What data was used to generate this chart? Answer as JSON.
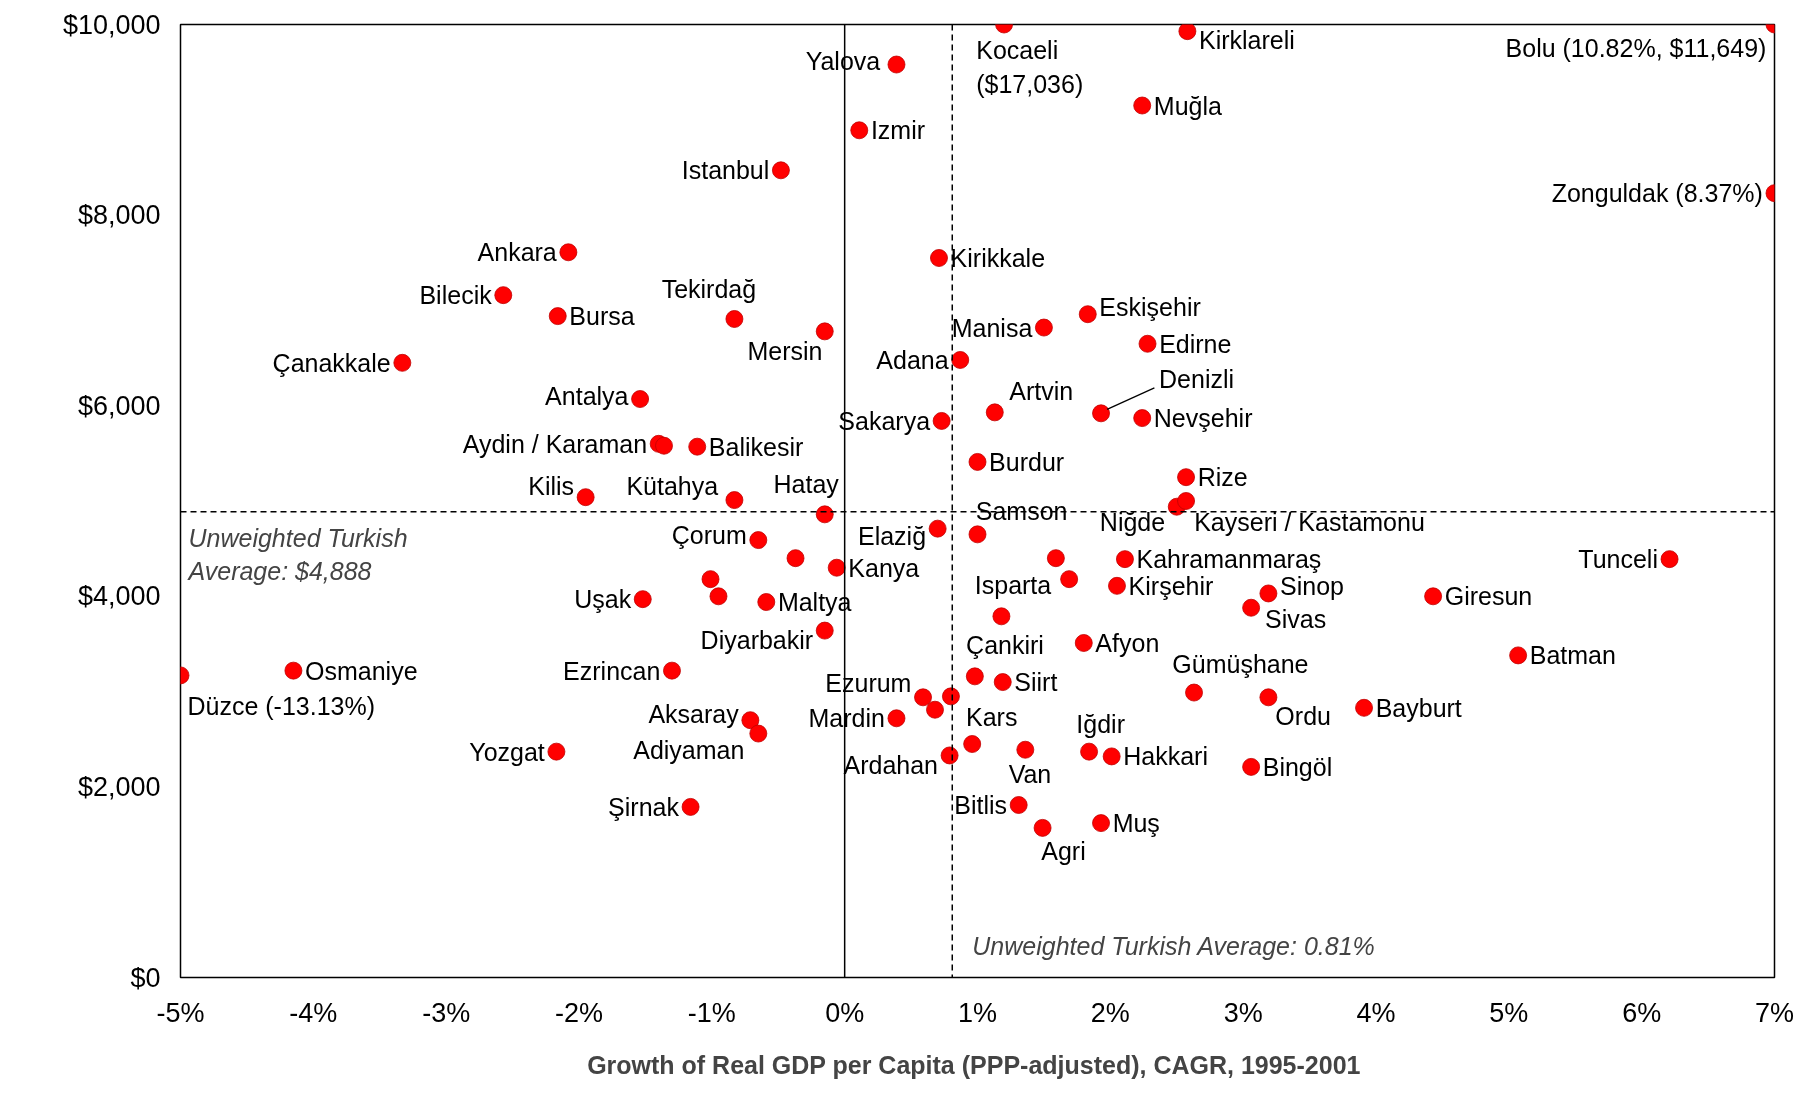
{
  "chart_data": {
    "type": "scatter",
    "xlabel": "Growth of Real GDP per Capita (PPP-adjusted),  CAGR, 1995-2001",
    "xlim": [
      -5,
      7
    ],
    "ylim": [
      0,
      10000
    ],
    "xticks": [
      {
        "value": -5,
        "label": "-5%"
      },
      {
        "value": -4,
        "label": "-4%"
      },
      {
        "value": -3,
        "label": "-3%"
      },
      {
        "value": -2,
        "label": "-2%"
      },
      {
        "value": -1,
        "label": "-1%"
      },
      {
        "value": 0,
        "label": "0%"
      },
      {
        "value": 1,
        "label": "1%"
      },
      {
        "value": 2,
        "label": "2%"
      },
      {
        "value": 3,
        "label": "3%"
      },
      {
        "value": 4,
        "label": "4%"
      },
      {
        "value": 5,
        "label": "5%"
      },
      {
        "value": 6,
        "label": "6%"
      },
      {
        "value": 7,
        "label": "7%"
      }
    ],
    "yticks": [
      {
        "value": 0,
        "label": "$0"
      },
      {
        "value": 2000,
        "label": "$2,000"
      },
      {
        "value": 4000,
        "label": "$4,000"
      },
      {
        "value": 6000,
        "label": "$6,000"
      },
      {
        "value": 8000,
        "label": "$8,000"
      },
      {
        "value": 10000,
        "label": "$10,000"
      }
    ],
    "grid": false,
    "marker": "circle",
    "annotations": [
      {
        "text": "Düzce (-13.13%)",
        "x": -5.0,
        "y": 3170
      },
      {
        "text": "Zonguldak (8.37%)",
        "x": 7.0,
        "y": 8230
      },
      {
        "text": "Kocaeli\n($17,036)",
        "x": 1.2,
        "y": 10000
      }
    ],
    "ref_lines": [
      {
        "axis": "x",
        "value": 0.81,
        "label": "Unweighted Turkish Average: 0.81%",
        "line_style": "dashed"
      },
      {
        "axis": "y",
        "value": 4888,
        "label": "Unweighted Turkish\nAverage: $4,888",
        "line_style": "dashed"
      },
      {
        "axis": "x",
        "value": 0,
        "line_style": "solid"
      }
    ],
    "series": [
      {
        "color": "#ff0000",
        "x": [
          -5.0,
          -4.15,
          -3.33,
          -2.57,
          -2.08,
          -2.16,
          -2.17,
          -1.95,
          -1.52,
          -1.54,
          -1.4,
          -1.36,
          -1.3,
          -1.16,
          -1.11,
          -1.01,
          -0.95,
          -0.65,
          -0.83,
          -0.83,
          -0.71,
          -0.65,
          -0.59,
          -0.37,
          -0.48,
          -0.15,
          -0.15,
          -0.15,
          -0.06,
          0.11,
          0.39,
          0.39,
          0.59,
          0.68,
          0.8,
          0.96,
          1.36,
          0.79,
          0.7,
          0.73,
          0.71,
          0.87,
          0.98,
          1.19,
          1.0,
          1.0,
          1.13,
          1.18,
          1.31,
          1.49,
          1.5,
          1.59,
          1.69,
          1.8,
          1.83,
          1.84,
          1.93,
          1.93,
          2.01,
          2.05,
          2.11,
          2.24,
          2.24,
          2.28,
          2.5,
          2.57,
          2.57,
          2.58,
          2.63,
          3.06,
          3.06,
          3.19,
          3.19,
          3.91,
          4.43,
          5.07,
          6.21,
          7.0,
          7.0,
          1.2
        ],
        "values": [
          3170,
          3220,
          6450,
          7160,
          7610,
          6940,
          2370,
          5040,
          3970,
          6070,
          5600,
          5580,
          3220,
          1790,
          5570,
          4180,
          4000,
          4590,
          5010,
          6910,
          2700,
          2560,
          3940,
          4400,
          8470,
          3640,
          6780,
          4860,
          4300,
          8890,
          9580,
          2720,
          2940,
          2810,
          2950,
          2450,
          2390,
          2330,
          4710,
          5840,
          7550,
          6480,
          3160,
          3100,
          5410,
          4650,
          5930,
          3790,
          1810,
          1570,
          6820,
          4400,
          4180,
          3510,
          6960,
          2370,
          5920,
          1620,
          2320,
          4110,
          4390,
          5870,
          9150,
          6650,
          4940,
          5000,
          5250,
          9930,
          2990,
          2210,
          3880,
          4030,
          2940,
          2830,
          4000,
          3380,
          4390,
          8230,
          10000,
          10000
        ],
        "value_labels": [
          null,
          "Osmaniye",
          "Çanakkale",
          "Bilecik",
          "Ankara",
          "Bursa",
          "Yozgat",
          "Kilis",
          "Uşak",
          "Antalya",
          "Aydin / Karaman",
          null,
          "Ezrincan",
          "Şirnak",
          "Balikesir",
          null,
          null,
          "Çorum",
          "Kütahya",
          "Tekirdağ",
          "Aksaray",
          "Adiyaman",
          "Maltya",
          null,
          "Istanbul",
          "Diyarbakir",
          "Mersin",
          "Hatay",
          "Kanya",
          "Izmir",
          "Yalova",
          "Mardin",
          "Ezurum",
          null,
          "Kars",
          null,
          "Van",
          "Ardahan",
          "Elaziğ",
          "Sakarya",
          "Kirikkale",
          "Adana",
          "Çankiri",
          "Siirt",
          "Burdur",
          "Samson",
          "Artvin",
          "Isparta",
          "Bitlis",
          "Agri",
          "Manisa",
          null,
          null,
          "Afyon",
          "Eskişehir",
          "Iğdir",
          "Denizli",
          "Muş",
          "Hakkari",
          "Kirşehir",
          "Kahramanmaraş",
          "Nevşehir",
          "Muğla",
          "Edirne",
          "Niğde",
          "Kayseri / Kastamonu",
          "Rize",
          "Kirklareli",
          "Gümüşhane",
          "Bingöl",
          "Sivas",
          "Sinop",
          "Ordu",
          "Bayburt",
          "Giresun",
          "Batman",
          "Tunceli",
          null,
          "Bolu (10.82%, $11,649)",
          null
        ]
      }
    ]
  }
}
